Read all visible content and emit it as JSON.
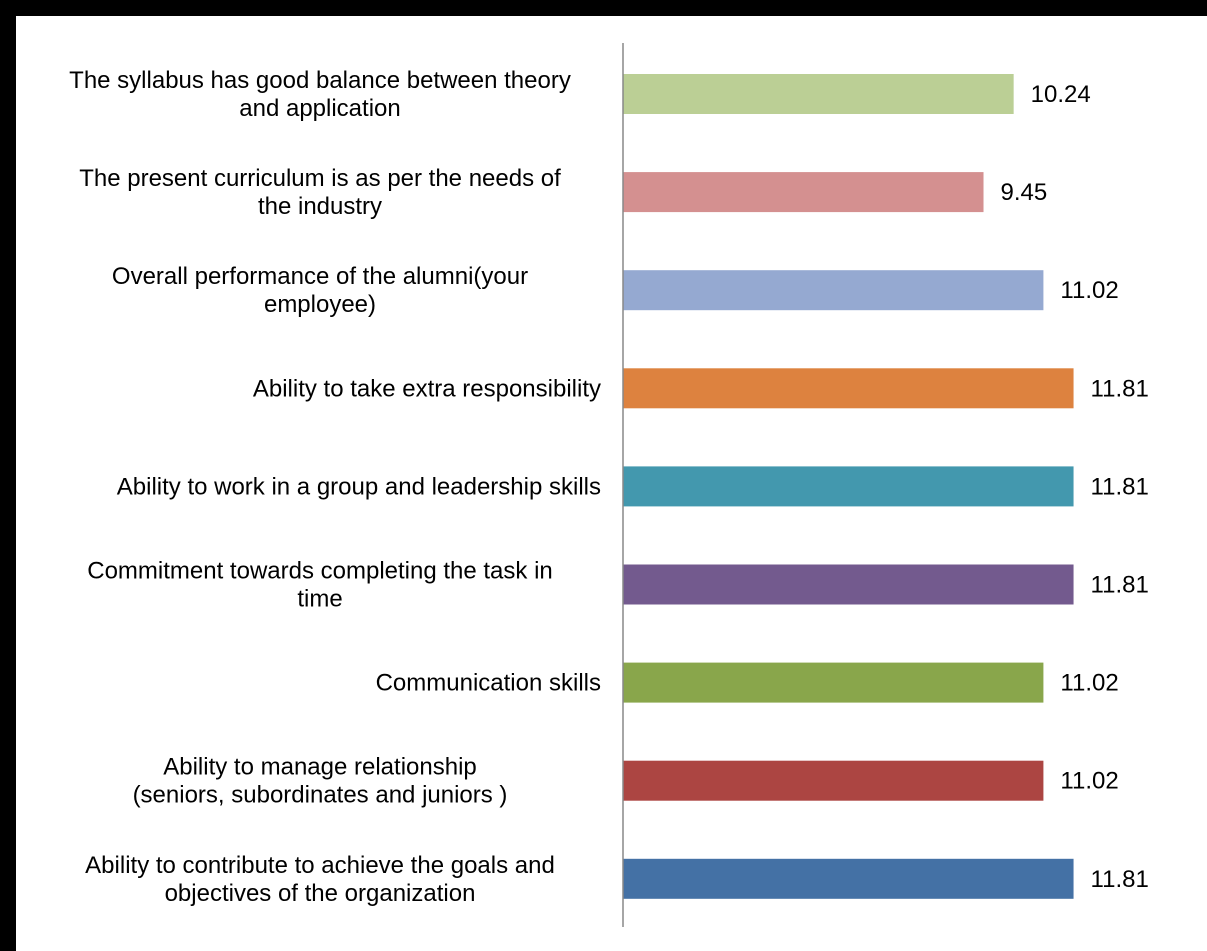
{
  "chart_data": {
    "type": "bar",
    "orientation": "horizontal",
    "title": "",
    "xlabel": "",
    "ylabel": "",
    "grid": false,
    "legend": "none",
    "xlim": [
      0,
      12.5
    ],
    "categories": [
      [
        "The syllabus has good balance between theory",
        "and application"
      ],
      [
        "The present curriculum is as per the needs of",
        "the industry"
      ],
      [
        "Overall performance of the alumni(your",
        "employee)"
      ],
      [
        "Ability to take extra responsibility"
      ],
      [
        "Ability to work in a group and leadership skills"
      ],
      [
        "Commitment towards completing the task in",
        "time"
      ],
      [
        "Communication skills"
      ],
      [
        "Ability to manage relationship",
        "(seniors, subordinates and juniors )"
      ],
      [
        "Ability to contribute to achieve the goals and",
        "objectives of the organization"
      ]
    ],
    "values": [
      10.24,
      9.45,
      11.02,
      11.81,
      11.81,
      11.81,
      11.02,
      11.02,
      11.81
    ],
    "value_labels": [
      "10.24",
      "9.45",
      "11.02",
      "11.81",
      "11.81",
      "11.81",
      "11.02",
      "11.02",
      "11.81"
    ],
    "colors": [
      "#bbcf95",
      "#d49090",
      "#95a9d1",
      "#dd823f",
      "#4398ae",
      "#735a8e",
      "#89a64b",
      "#ac4542",
      "#4471a5"
    ]
  }
}
